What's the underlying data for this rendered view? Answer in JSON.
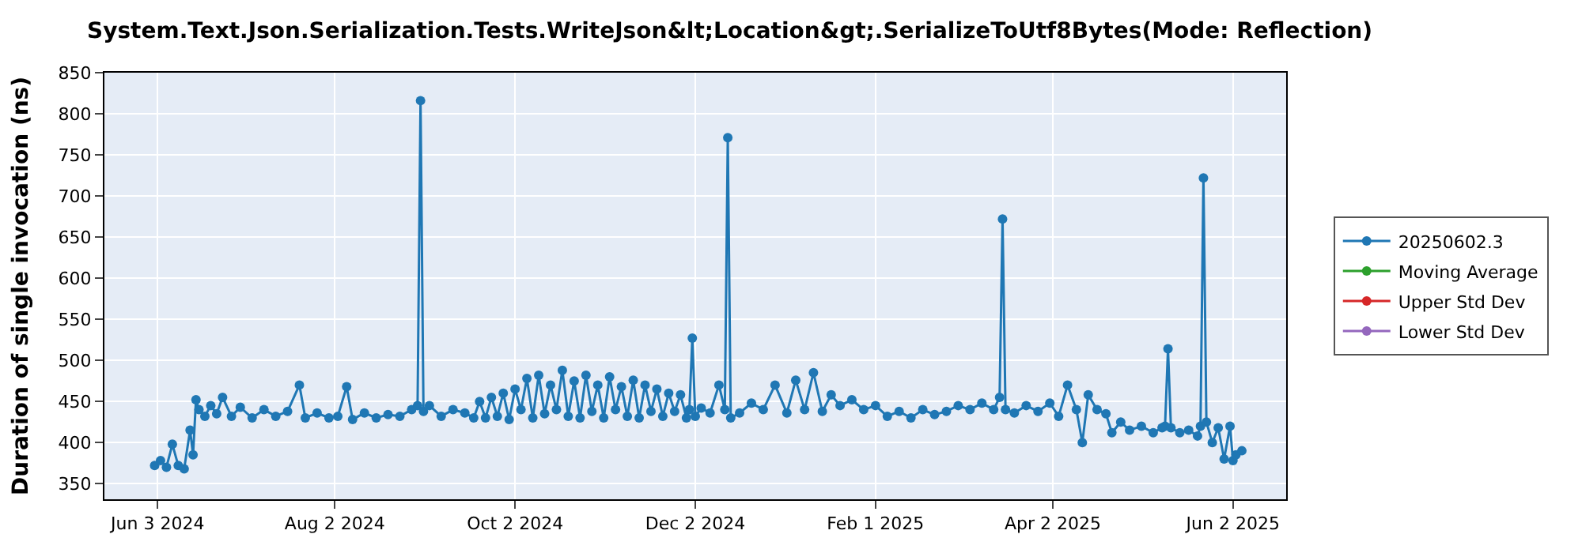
{
  "chart_data": {
    "type": "line",
    "title": "System.Text.Json.Serialization.Tests.WriteJson&lt;Location&gt;.SerializeToUtf8Bytes(Mode: Reflection)",
    "ylabel": "Duration of single invocation (ns)",
    "x": [
      "2024-06-02",
      "2024-06-04",
      "2024-06-06",
      "2024-06-08",
      "2024-06-10",
      "2024-06-12",
      "2024-06-14",
      "2024-06-15",
      "2024-06-16",
      "2024-06-17",
      "2024-06-19",
      "2024-06-21",
      "2024-06-23",
      "2024-06-25",
      "2024-06-28",
      "2024-07-01",
      "2024-07-05",
      "2024-07-09",
      "2024-07-13",
      "2024-07-17",
      "2024-07-21",
      "2024-07-23",
      "2024-07-27",
      "2024-07-31",
      "2024-08-03",
      "2024-08-06",
      "2024-08-08",
      "2024-08-12",
      "2024-08-16",
      "2024-08-20",
      "2024-08-24",
      "2024-08-28",
      "2024-08-30",
      "2024-08-31",
      "2024-09-01",
      "2024-09-03",
      "2024-09-07",
      "2024-09-11",
      "2024-09-15",
      "2024-09-18",
      "2024-09-20",
      "2024-09-22",
      "2024-09-24",
      "2024-09-26",
      "2024-09-28",
      "2024-09-30",
      "2024-10-02",
      "2024-10-04",
      "2024-10-06",
      "2024-10-08",
      "2024-10-10",
      "2024-10-12",
      "2024-10-14",
      "2024-10-16",
      "2024-10-18",
      "2024-10-20",
      "2024-10-22",
      "2024-10-24",
      "2024-10-26",
      "2024-10-28",
      "2024-10-30",
      "2024-11-01",
      "2024-11-03",
      "2024-11-05",
      "2024-11-07",
      "2024-11-09",
      "2024-11-11",
      "2024-11-13",
      "2024-11-15",
      "2024-11-17",
      "2024-11-19",
      "2024-11-21",
      "2024-11-23",
      "2024-11-25",
      "2024-11-27",
      "2024-11-29",
      "2024-11-30",
      "2024-12-01",
      "2024-12-02",
      "2024-12-04",
      "2024-12-07",
      "2024-12-10",
      "2024-12-12",
      "2024-12-13",
      "2024-12-14",
      "2024-12-17",
      "2024-12-21",
      "2024-12-25",
      "2024-12-29",
      "2025-01-02",
      "2025-01-05",
      "2025-01-08",
      "2025-01-11",
      "2025-01-14",
      "2025-01-17",
      "2025-01-20",
      "2025-01-24",
      "2025-01-28",
      "2025-02-01",
      "2025-02-05",
      "2025-02-09",
      "2025-02-13",
      "2025-02-17",
      "2025-02-21",
      "2025-02-25",
      "2025-03-01",
      "2025-03-05",
      "2025-03-09",
      "2025-03-13",
      "2025-03-15",
      "2025-03-16",
      "2025-03-17",
      "2025-03-20",
      "2025-03-24",
      "2025-03-28",
      "2025-04-01",
      "2025-04-04",
      "2025-04-07",
      "2025-04-10",
      "2025-04-12",
      "2025-04-14",
      "2025-04-17",
      "2025-04-20",
      "2025-04-22",
      "2025-04-25",
      "2025-04-28",
      "2025-05-02",
      "2025-05-06",
      "2025-05-09",
      "2025-05-10",
      "2025-05-11",
      "2025-05-12",
      "2025-05-15",
      "2025-05-18",
      "2025-05-21",
      "2025-05-22",
      "2025-05-23",
      "2025-05-24",
      "2025-05-26",
      "2025-05-28",
      "2025-05-30",
      "2025-06-01",
      "2025-06-02",
      "2025-06-03",
      "2025-06-05"
    ],
    "series": [
      {
        "name": "20250602.3",
        "color": "#1f77b4",
        "values": [
          372,
          378,
          370,
          398,
          372,
          368,
          415,
          385,
          452,
          440,
          432,
          445,
          435,
          455,
          432,
          443,
          430,
          440,
          432,
          438,
          470,
          430,
          436,
          430,
          432,
          468,
          428,
          436,
          430,
          434,
          432,
          440,
          445,
          816,
          438,
          445,
          432,
          440,
          436,
          430,
          450,
          430,
          455,
          432,
          460,
          428,
          465,
          440,
          478,
          430,
          482,
          435,
          470,
          440,
          488,
          432,
          475,
          430,
          482,
          438,
          470,
          430,
          480,
          440,
          468,
          432,
          476,
          430,
          470,
          438,
          465,
          432,
          460,
          438,
          458,
          430,
          440,
          527,
          432,
          442,
          436,
          470,
          440,
          771,
          430,
          436,
          448,
          440,
          470,
          436,
          476,
          440,
          485,
          438,
          458,
          445,
          452,
          440,
          445,
          432,
          438,
          430,
          440,
          434,
          438,
          445,
          440,
          448,
          440,
          455,
          672,
          440,
          436,
          445,
          438,
          448,
          432,
          470,
          440,
          400,
          458,
          440,
          435,
          412,
          425,
          415,
          420,
          412,
          418,
          420,
          514,
          418,
          412,
          415,
          408,
          420,
          722,
          425,
          400,
          418,
          380,
          420,
          378,
          385,
          390
        ]
      },
      {
        "name": "Moving Average",
        "color": "#2ca02c",
        "values": [
          null,
          null,
          null,
          null,
          null,
          null,
          null,
          null,
          null,
          null,
          null,
          null,
          null,
          null,
          null,
          null,
          null,
          null,
          null,
          null,
          null,
          null,
          null,
          null,
          null,
          null,
          null,
          null,
          null,
          null,
          null,
          null,
          null,
          null,
          null,
          null,
          null,
          null,
          null,
          null,
          null,
          null,
          null,
          null,
          null,
          null,
          null,
          null,
          null,
          null,
          null,
          null,
          null,
          null,
          null,
          null,
          null,
          null,
          null,
          null,
          null,
          null,
          null,
          null,
          null,
          null,
          null,
          null,
          null,
          null,
          null,
          null,
          null,
          null,
          null,
          null,
          null,
          null,
          null,
          null,
          null,
          null,
          null,
          null,
          null,
          null,
          null,
          null,
          null,
          null,
          null,
          null,
          null,
          null,
          null,
          null,
          null,
          null,
          null,
          null,
          null,
          null,
          null,
          null,
          null,
          null,
          null,
          null,
          null,
          null,
          null,
          null,
          null,
          null,
          null,
          null,
          null,
          null,
          null,
          null,
          null,
          null,
          null,
          null,
          null,
          null,
          null,
          null,
          null,
          null,
          null,
          null,
          null,
          null,
          null,
          null,
          null,
          null,
          null,
          null,
          null,
          null,
          null,
          null,
          null
        ]
      },
      {
        "name": "Upper Std Dev",
        "color": "#d62728",
        "values": [
          null,
          null,
          null,
          null,
          null,
          null,
          null,
          null,
          null,
          null,
          null,
          null,
          null,
          null,
          null,
          null,
          null,
          null,
          null,
          null,
          null,
          null,
          null,
          null,
          null,
          null,
          null,
          null,
          null,
          null,
          null,
          null,
          null,
          null,
          null,
          null,
          null,
          null,
          null,
          null,
          null,
          null,
          null,
          null,
          null,
          null,
          null,
          null,
          null,
          null,
          null,
          null,
          null,
          null,
          null,
          null,
          null,
          null,
          null,
          null,
          null,
          null,
          null,
          null,
          null,
          null,
          null,
          null,
          null,
          null,
          null,
          null,
          null,
          null,
          null,
          null,
          null,
          null,
          null,
          null,
          null,
          null,
          null,
          null,
          null,
          null,
          null,
          null,
          null,
          null,
          null,
          null,
          null,
          null,
          null,
          null,
          null,
          null,
          null,
          null,
          null,
          null,
          null,
          null,
          null,
          null,
          null,
          null,
          null,
          null,
          null,
          null,
          null,
          null,
          null,
          null,
          null,
          null,
          null,
          null,
          null,
          null,
          null,
          null,
          null,
          null,
          null,
          null,
          null,
          null,
          null,
          null,
          null,
          null,
          null,
          null,
          null,
          null,
          null,
          null,
          null,
          null,
          null,
          null,
          null
        ]
      },
      {
        "name": "Lower Std Dev",
        "color": "#9467bd",
        "values": [
          null,
          null,
          null,
          null,
          null,
          null,
          null,
          null,
          null,
          null,
          null,
          null,
          null,
          null,
          null,
          null,
          null,
          null,
          null,
          null,
          null,
          null,
          null,
          null,
          null,
          null,
          null,
          null,
          null,
          null,
          null,
          null,
          null,
          null,
          null,
          null,
          null,
          null,
          null,
          null,
          null,
          null,
          null,
          null,
          null,
          null,
          null,
          null,
          null,
          null,
          null,
          null,
          null,
          null,
          null,
          null,
          null,
          null,
          null,
          null,
          null,
          null,
          null,
          null,
          null,
          null,
          null,
          null,
          null,
          null,
          null,
          null,
          null,
          null,
          null,
          null,
          null,
          null,
          null,
          null,
          null,
          null,
          null,
          null,
          null,
          null,
          null,
          null,
          null,
          null,
          null,
          null,
          null,
          null,
          null,
          null,
          null,
          null,
          null,
          null,
          null,
          null,
          null,
          null,
          null,
          null,
          null,
          null,
          null,
          null,
          null,
          null,
          null,
          null,
          null,
          null,
          null,
          null,
          null,
          null,
          null,
          null,
          null,
          null,
          null,
          null,
          null,
          null,
          null,
          null,
          null,
          null,
          null,
          null,
          null,
          null,
          null,
          null,
          null,
          null,
          null,
          null,
          null,
          null,
          null
        ]
      }
    ],
    "xlim": [
      "2024-05-16",
      "2025-06-20"
    ],
    "xticks": [
      {
        "value": "2024-06-03",
        "label": "Jun 3 2024"
      },
      {
        "value": "2024-08-02",
        "label": "Aug 2 2024"
      },
      {
        "value": "2024-10-02",
        "label": "Oct 2 2024"
      },
      {
        "value": "2024-12-02",
        "label": "Dec 2 2024"
      },
      {
        "value": "2025-02-01",
        "label": "Feb 1 2025"
      },
      {
        "value": "2025-04-02",
        "label": "Apr 2 2025"
      },
      {
        "value": "2025-06-02",
        "label": "Jun 2 2025"
      }
    ],
    "ylim": [
      331,
      850
    ],
    "yticks": [
      350,
      400,
      450,
      500,
      550,
      600,
      650,
      700,
      750,
      800,
      850
    ],
    "grid": true,
    "legend": "right",
    "marker": "circle",
    "line_style": "solid"
  }
}
